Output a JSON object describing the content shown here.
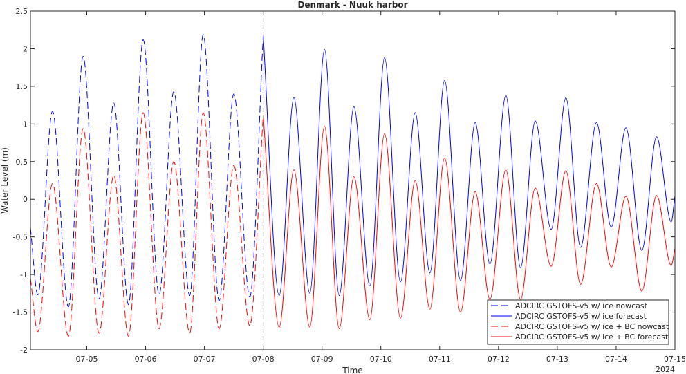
{
  "chart_data": {
    "type": "line",
    "title": "Denmark - Nuuk harbor",
    "xlabel": "Time",
    "ylabel": "Water Level (m)",
    "x_unit": "date (2024)",
    "xlim": [
      "2024-07-04T01:00",
      "2024-07-15T00:00"
    ],
    "ylim": [
      -2,
      2.5
    ],
    "x_ticks": [
      "07-05",
      "07-06",
      "07-07",
      "07-08",
      "07-09",
      "07-10",
      "07-11",
      "07-12",
      "07-13",
      "07-14",
      "07-15"
    ],
    "x_tick_dates": [
      "2024-07-05",
      "2024-07-06",
      "2024-07-07",
      "2024-07-08",
      "2024-07-09",
      "2024-07-10",
      "2024-07-11",
      "2024-07-12",
      "2024-07-13",
      "2024-07-14",
      "2024-07-15"
    ],
    "y_ticks": [
      "-2",
      "-1.5",
      "-1",
      "-0.5",
      "0",
      "0.5",
      "1",
      "1.5",
      "2",
      "2.5"
    ],
    "year_label": "2024",
    "nowcast_end": "2024-07-08T00:00",
    "grid": false,
    "legend_position": "bottom-right",
    "series": [
      {
        "name": "ADCIRC GSTOFS-v5 w/ ice nowcast",
        "color": "#0000ff",
        "dash": "dashed",
        "points": [
          [
            "2024-07-04T01:00",
            -0.38
          ],
          [
            "2024-07-04T04:00",
            -1.27
          ],
          [
            "2024-07-04T10:00",
            1.17
          ],
          [
            "2024-07-04T16:30",
            -1.43
          ],
          [
            "2024-07-04T22:30",
            1.9
          ],
          [
            "2024-07-05T05:00",
            -1.32
          ],
          [
            "2024-07-05T11:00",
            1.28
          ],
          [
            "2024-07-05T17:00",
            -1.4
          ],
          [
            "2024-07-05T23:00",
            2.12
          ],
          [
            "2024-07-06T05:30",
            -1.27
          ],
          [
            "2024-07-06T11:30",
            1.43
          ],
          [
            "2024-07-06T18:00",
            -1.28
          ],
          [
            "2024-07-06T23:30",
            2.19
          ],
          [
            "2024-07-07T06:00",
            -1.35
          ],
          [
            "2024-07-07T12:00",
            1.4
          ],
          [
            "2024-07-07T18:30",
            -1.3
          ],
          [
            "2024-07-08T00:00",
            2.18
          ]
        ]
      },
      {
        "name": "ADCIRC GSTOFS-v5 w/ ice forecast",
        "color": "#0000ff",
        "dash": "solid",
        "points": [
          [
            "2024-07-08T00:00",
            2.18
          ],
          [
            "2024-07-08T06:30",
            -1.28
          ],
          [
            "2024-07-08T12:30",
            1.35
          ],
          [
            "2024-07-08T19:00",
            -1.25
          ],
          [
            "2024-07-09T01:00",
            1.99
          ],
          [
            "2024-07-09T07:00",
            -1.28
          ],
          [
            "2024-07-09T13:00",
            1.23
          ],
          [
            "2024-07-09T19:30",
            -1.15
          ],
          [
            "2024-07-10T01:30",
            1.88
          ],
          [
            "2024-07-10T08:00",
            -1.1
          ],
          [
            "2024-07-10T14:00",
            1.15
          ],
          [
            "2024-07-10T20:00",
            -0.98
          ],
          [
            "2024-07-11T02:00",
            1.58
          ],
          [
            "2024-07-11T08:30",
            -1.08
          ],
          [
            "2024-07-11T14:30",
            1.02
          ],
          [
            "2024-07-11T20:30",
            -0.86
          ],
          [
            "2024-07-12T03:00",
            1.38
          ],
          [
            "2024-07-12T09:00",
            -0.91
          ],
          [
            "2024-07-12T15:00",
            1.04
          ],
          [
            "2024-07-12T21:30",
            -0.4
          ],
          [
            "2024-07-13T03:30",
            1.35
          ],
          [
            "2024-07-13T09:30",
            -0.64
          ],
          [
            "2024-07-13T16:00",
            1.02
          ],
          [
            "2024-07-13T22:00",
            -0.37
          ],
          [
            "2024-07-14T04:00",
            0.95
          ],
          [
            "2024-07-14T10:30",
            -0.68
          ],
          [
            "2024-07-14T16:30",
            0.83
          ],
          [
            "2024-07-14T22:30",
            -0.3
          ],
          [
            "2024-07-15T00:00",
            0.05
          ]
        ]
      },
      {
        "name": "ADCIRC GSTOFS-v5 w/ ice + BC nowcast",
        "color": "#ff0000",
        "dash": "dashed",
        "points": [
          [
            "2024-07-04T01:00",
            -1.05
          ],
          [
            "2024-07-04T04:00",
            -1.76
          ],
          [
            "2024-07-04T10:00",
            0.21
          ],
          [
            "2024-07-04T16:30",
            -1.82
          ],
          [
            "2024-07-04T22:30",
            0.94
          ],
          [
            "2024-07-05T05:00",
            -1.78
          ],
          [
            "2024-07-05T11:00",
            0.32
          ],
          [
            "2024-07-05T17:00",
            -1.82
          ],
          [
            "2024-07-05T23:00",
            1.15
          ],
          [
            "2024-07-06T05:30",
            -1.72
          ],
          [
            "2024-07-06T11:30",
            0.5
          ],
          [
            "2024-07-06T18:00",
            -1.78
          ],
          [
            "2024-07-06T23:30",
            1.15
          ],
          [
            "2024-07-07T06:00",
            -1.72
          ],
          [
            "2024-07-07T12:00",
            0.45
          ],
          [
            "2024-07-07T18:30",
            -1.68
          ],
          [
            "2024-07-08T00:00",
            1.12
          ]
        ]
      },
      {
        "name": "ADCIRC GSTOFS-v5 w/ ice + BC forecast",
        "color": "#ff0000",
        "dash": "solid",
        "points": [
          [
            "2024-07-08T00:00",
            1.12
          ],
          [
            "2024-07-08T06:30",
            -1.7
          ],
          [
            "2024-07-08T12:30",
            0.39
          ],
          [
            "2024-07-08T19:00",
            -1.7
          ],
          [
            "2024-07-09T01:00",
            0.97
          ],
          [
            "2024-07-09T07:00",
            -1.72
          ],
          [
            "2024-07-09T13:00",
            0.3
          ],
          [
            "2024-07-09T19:30",
            -1.6
          ],
          [
            "2024-07-10T01:30",
            0.87
          ],
          [
            "2024-07-10T08:00",
            -1.58
          ],
          [
            "2024-07-10T14:00",
            0.25
          ],
          [
            "2024-07-10T20:00",
            -1.46
          ],
          [
            "2024-07-11T02:00",
            0.55
          ],
          [
            "2024-07-11T08:30",
            -1.5
          ],
          [
            "2024-07-11T14:30",
            0.1
          ],
          [
            "2024-07-11T20:30",
            -1.33
          ],
          [
            "2024-07-12T03:00",
            0.39
          ],
          [
            "2024-07-12T09:00",
            -1.33
          ],
          [
            "2024-07-12T15:00",
            0.15
          ],
          [
            "2024-07-12T21:30",
            -0.89
          ],
          [
            "2024-07-13T03:30",
            0.38
          ],
          [
            "2024-07-13T09:30",
            -1.13
          ],
          [
            "2024-07-13T16:00",
            0.21
          ],
          [
            "2024-07-13T22:00",
            -0.9
          ],
          [
            "2024-07-14T04:00",
            0.04
          ],
          [
            "2024-07-14T10:30",
            -1.22
          ],
          [
            "2024-07-14T16:30",
            0.05
          ],
          [
            "2024-07-14T22:30",
            -0.88
          ],
          [
            "2024-07-15T00:00",
            -0.65
          ]
        ]
      }
    ]
  }
}
